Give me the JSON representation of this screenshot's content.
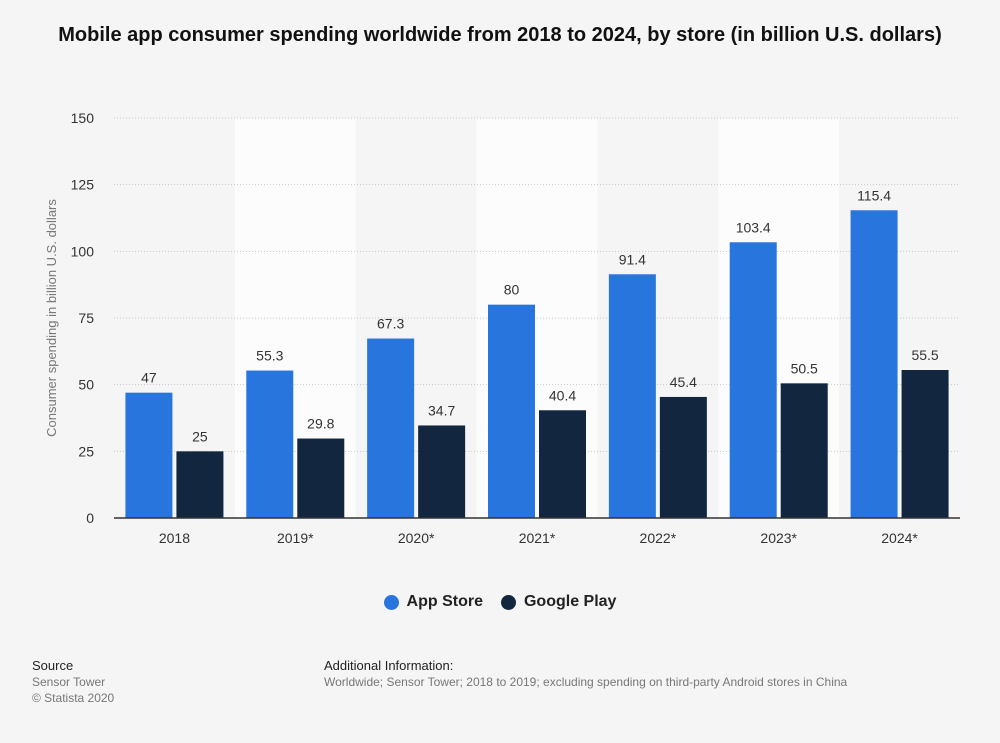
{
  "title": "Mobile app consumer spending worldwide from 2018 to 2024, by store (in billion U.S. dollars)",
  "chart_data": {
    "type": "bar",
    "title": "Mobile app consumer spending worldwide from 2018 to 2024, by store (in billion U.S. dollars)",
    "xlabel": "",
    "ylabel": "Consumer spending in billion U.S. dollars",
    "categories": [
      "2018",
      "2019*",
      "2020*",
      "2021*",
      "2022*",
      "2023*",
      "2024*"
    ],
    "yticks": [
      "0",
      "25",
      "50",
      "75",
      "100",
      "125",
      "150"
    ],
    "ylim": [
      0,
      150
    ],
    "grid": true,
    "legend_position": "bottom",
    "series": [
      {
        "name": "App Store",
        "color": "#2876dd",
        "values": [
          47,
          55.3,
          67.3,
          80,
          91.4,
          103.4,
          115.4
        ],
        "labels": [
          "47",
          "55.3",
          "67.3",
          "80",
          "91.4",
          "103.4",
          "115.4"
        ]
      },
      {
        "name": "Google Play",
        "color": "#12263f",
        "values": [
          25,
          29.8,
          34.7,
          40.4,
          45.4,
          50.5,
          55.5
        ],
        "labels": [
          "25",
          "29.8",
          "34.7",
          "40.4",
          "45.4",
          "50.5",
          "55.5"
        ]
      }
    ]
  },
  "legend": {
    "items": [
      "App Store",
      "Google Play"
    ]
  },
  "source": {
    "heading": "Source",
    "lines": [
      "Sensor Tower",
      "© Statista 2020"
    ]
  },
  "info": {
    "heading": "Additional Information:",
    "text": "Worldwide; Sensor Tower; 2018 to 2019; excluding spending on third-party Android stores in China"
  }
}
